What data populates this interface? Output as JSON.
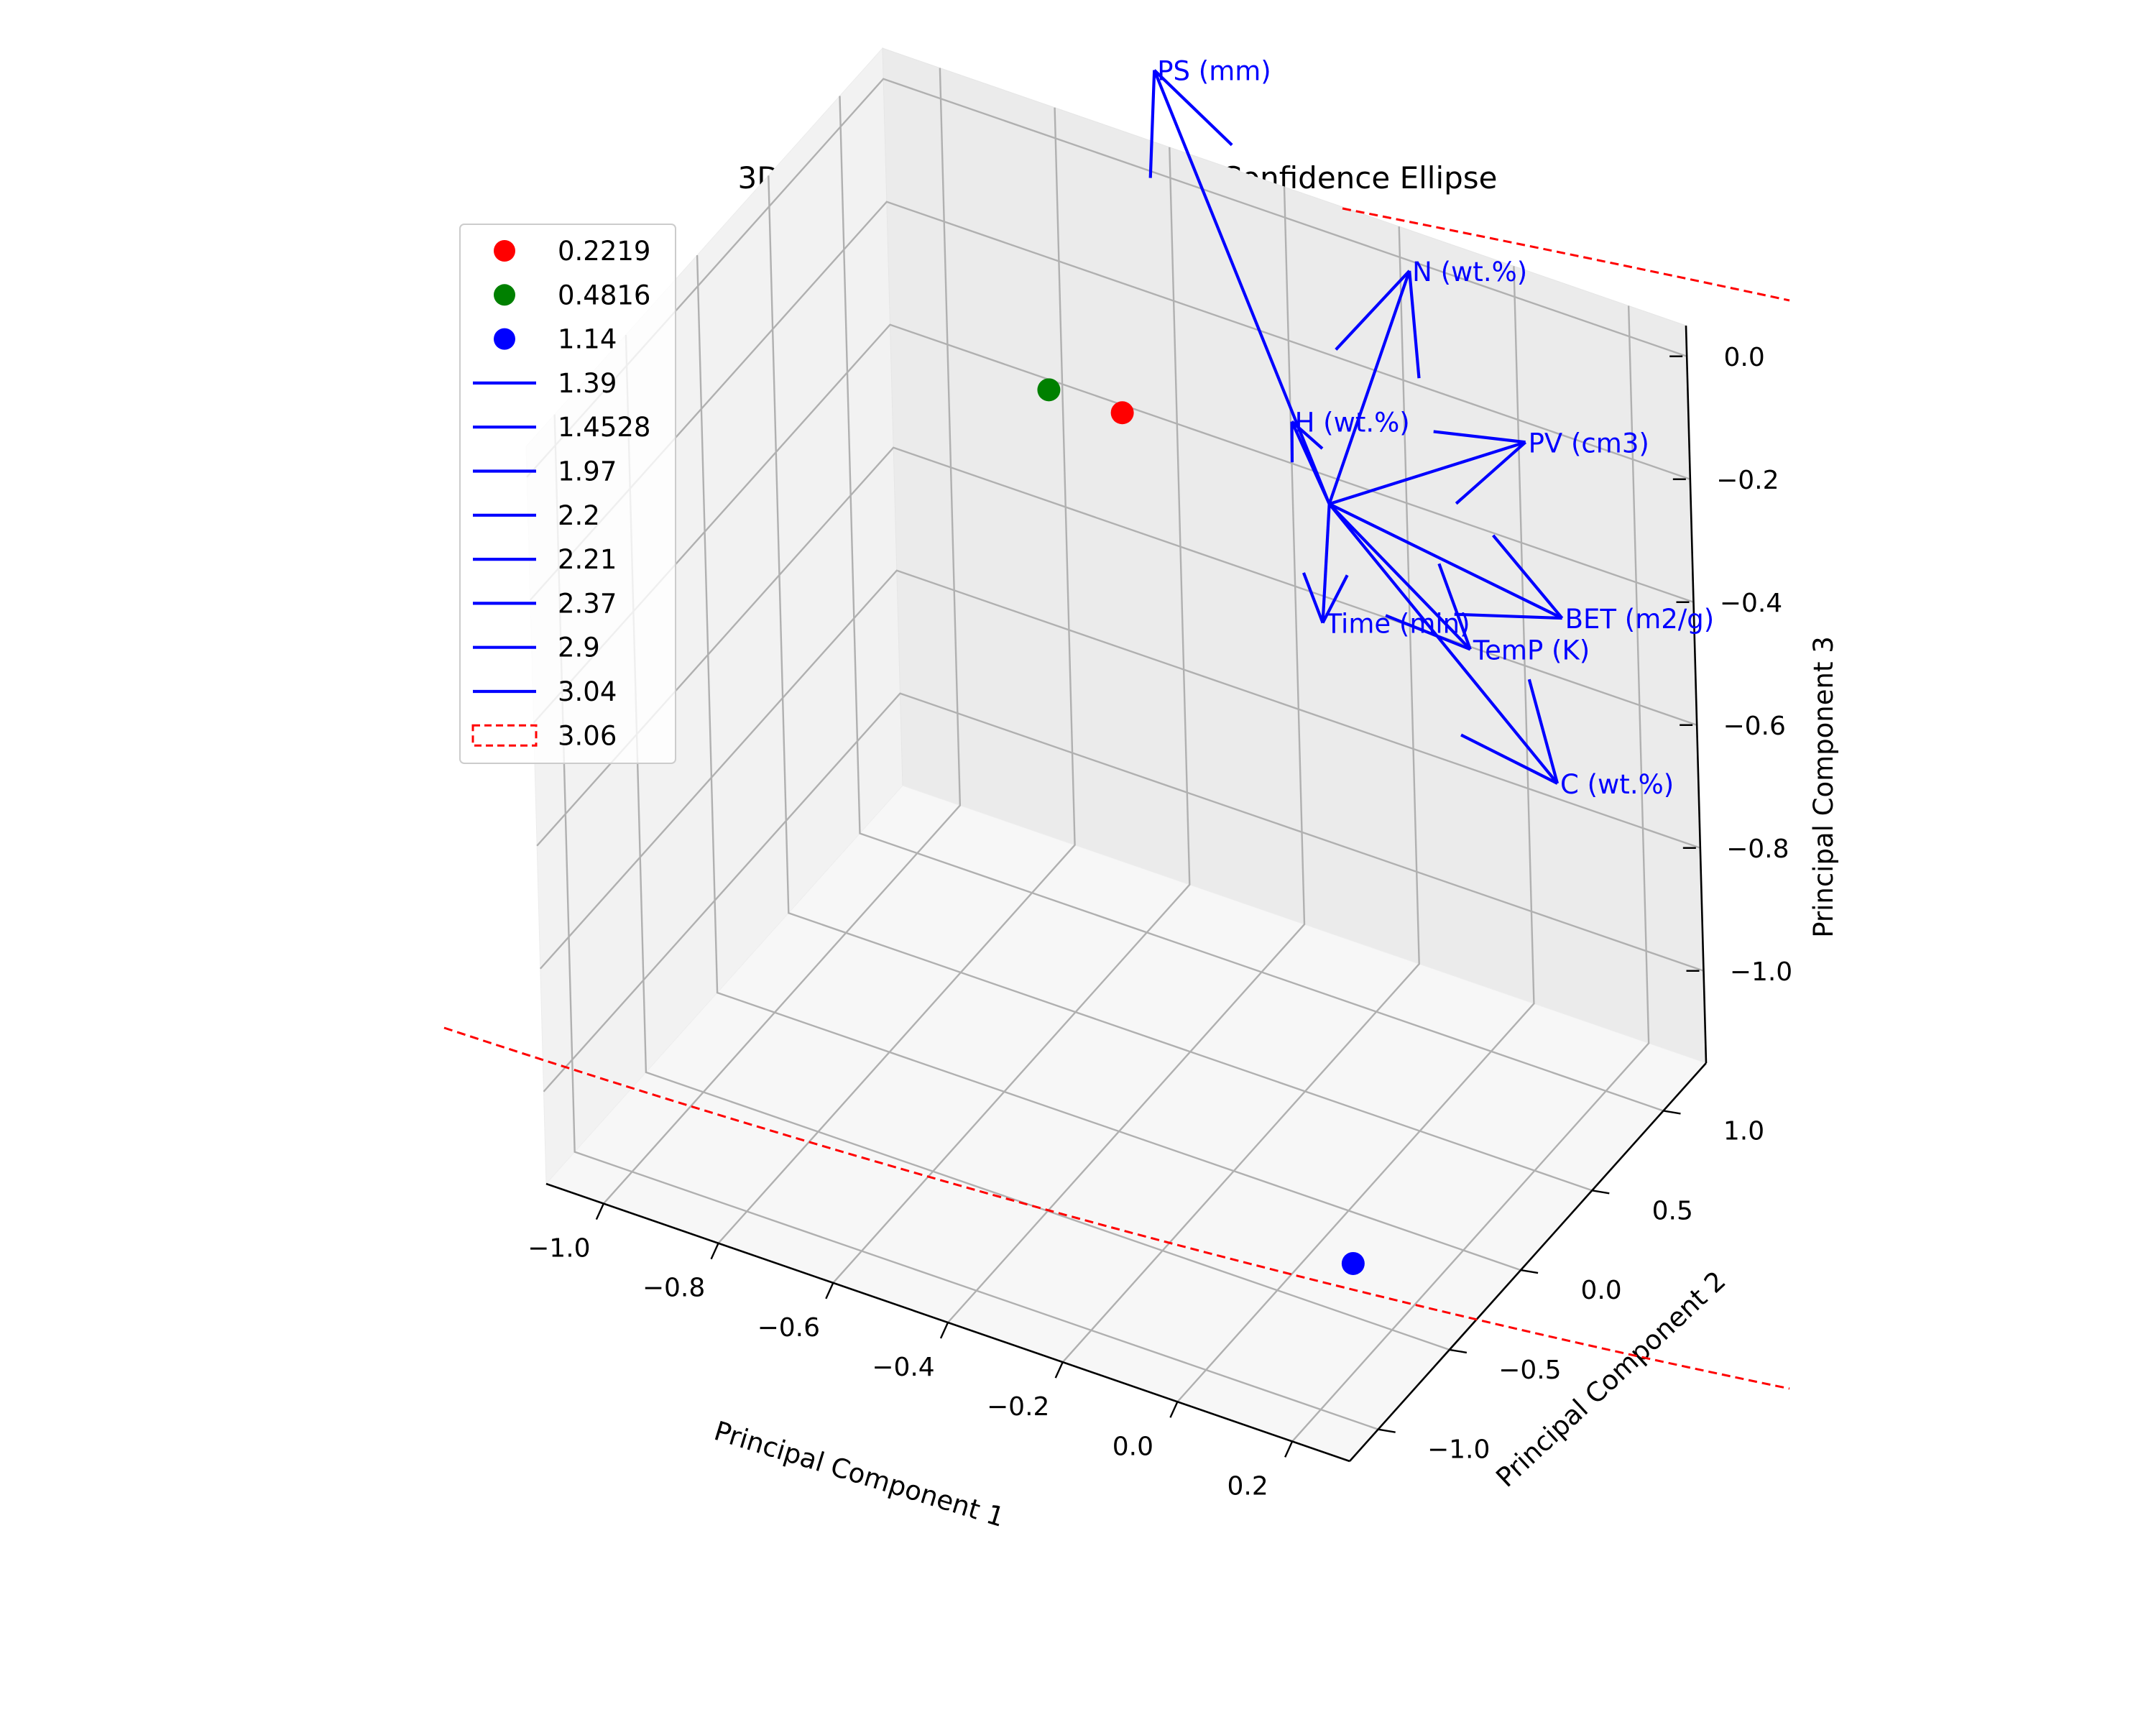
{
  "chart_data": {
    "type": "scatter",
    "projection": "3d",
    "title": "3D PCA with Loadings and 95% Confidence Ellipse",
    "xlabel": "Principal Component 1",
    "ylabel": "Principal Component 2",
    "zlabel": "Principal Component 3",
    "xlim": [
      -1.1,
      0.3
    ],
    "ylim": [
      -1.2,
      1.3
    ],
    "zlim": [
      -1.15,
      0.05
    ],
    "x_ticks": [
      "−1.0",
      "−0.8",
      "−0.6",
      "−0.4",
      "−0.2",
      "0.0",
      "0.2"
    ],
    "y_ticks": [
      "−1.0",
      "−0.5",
      "0.0",
      "0.5",
      "1.0"
    ],
    "z_ticks": [
      "0.0",
      "−0.2",
      "−0.4",
      "−0.6",
      "−0.8",
      "−1.0"
    ],
    "grid": true,
    "legend_position": "upper-left",
    "legend": [
      {
        "label": "0.2219",
        "kind": "marker",
        "color": "#ff0000"
      },
      {
        "label": "0.4816",
        "kind": "marker",
        "color": "#008000"
      },
      {
        "label": "1.14",
        "kind": "marker",
        "color": "#0000ff"
      },
      {
        "label": "1.39",
        "kind": "line",
        "color": "#0000ff"
      },
      {
        "label": "1.4528",
        "kind": "line",
        "color": "#0000ff"
      },
      {
        "label": "1.97",
        "kind": "line",
        "color": "#0000ff"
      },
      {
        "label": "2.2",
        "kind": "line",
        "color": "#0000ff"
      },
      {
        "label": "2.21",
        "kind": "line",
        "color": "#0000ff"
      },
      {
        "label": "2.37",
        "kind": "line",
        "color": "#0000ff"
      },
      {
        "label": "2.9",
        "kind": "line",
        "color": "#0000ff"
      },
      {
        "label": "3.04",
        "kind": "line",
        "color": "#0000ff"
      },
      {
        "label": "3.06",
        "kind": "patch",
        "color": "#ff0000"
      }
    ],
    "scores": [
      {
        "label": "0.2219",
        "color": "#ff0000",
        "x": -0.52,
        "y": 0.62,
        "z": -0.18
      },
      {
        "label": "0.4816",
        "color": "#008000",
        "x": -0.63,
        "y": 0.55,
        "z": -0.16
      },
      {
        "label": "1.14",
        "color": "#0000ff",
        "x": 0.22,
        "y": -0.83,
        "z": -0.95
      }
    ],
    "loadings": [
      {
        "label": "PS (mm)",
        "x": -0.38,
        "y": 0.36,
        "z": 0.49
      },
      {
        "label": "N  (wt.%)",
        "x": 0.01,
        "y": 0.55,
        "z": 0.24
      },
      {
        "label": "H  (wt.%)",
        "x": -0.08,
        "y": 0.07,
        "z": 0.09
      },
      {
        "label": "PV (cm3)",
        "x": 0.18,
        "y": 0.65,
        "z": -0.01
      },
      {
        "label": "BET (m2/g)",
        "x": 0.28,
        "y": 0.48,
        "z": -0.22
      },
      {
        "label": "TemP (K)",
        "x": 0.21,
        "y": 0.12,
        "z": -0.2
      },
      {
        "label": "Time (min)",
        "x": 0.05,
        "y": -0.26,
        "z": -0.11
      },
      {
        "label": "C (wt.%)",
        "x": 0.38,
        "y": 0.03,
        "z": -0.34
      }
    ],
    "loading_origin": {
      "x": 0,
      "y": 0,
      "z": 0
    },
    "ellipse": {
      "label": "3.06",
      "color": "#ff0000",
      "style": "dashed"
    }
  },
  "colors": {
    "loading": "#0000ff",
    "ellipse": "#ff0000",
    "pane": "#f2f2f2",
    "grid": "#b0b0b0"
  }
}
